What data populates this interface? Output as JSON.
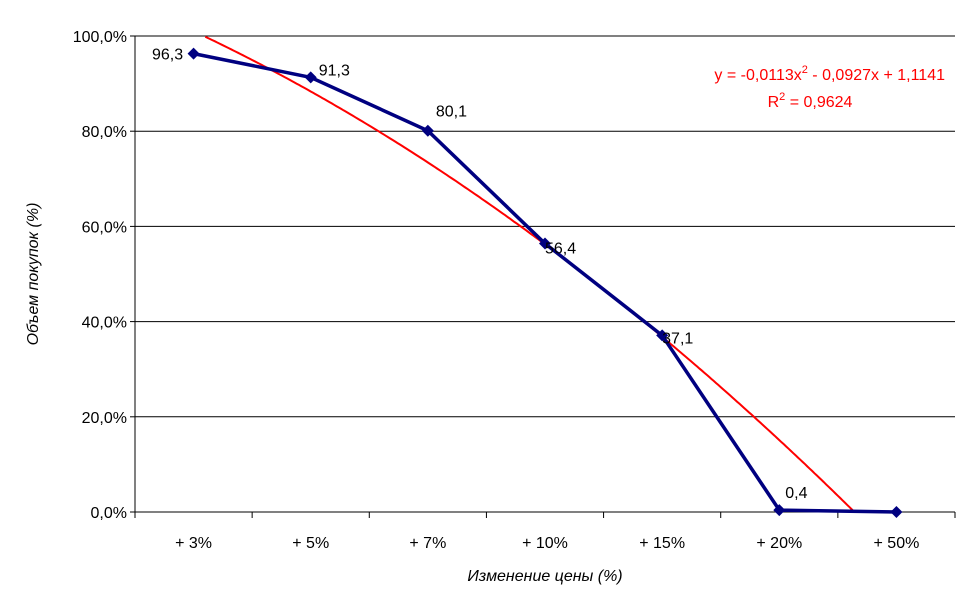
{
  "chart_data": {
    "type": "line",
    "title": "",
    "xlabel": "Изменение цены (%)",
    "ylabel": "Объем покупок (%)",
    "categories": [
      "+ 3%",
      "+ 5%",
      "+ 7%",
      "+ 10%",
      "+ 15%",
      "+ 20%",
      "+ 50%"
    ],
    "series": [
      {
        "name": "Объем покупок",
        "values": [
          96.3,
          91.3,
          80.1,
          56.4,
          37.1,
          0.4,
          0.0
        ],
        "color": "#000080",
        "data_labels": [
          "96,3",
          "91,3",
          "80,1",
          "56,4",
          "37,1",
          "0,4",
          null
        ]
      }
    ],
    "trendline": {
      "type": "polynomial",
      "order": 2,
      "coefficients": [
        -0.0113,
        -0.0927,
        1.1141
      ],
      "equation": "y = -0,0113x",
      "equation_sup": "2",
      "equation_rest": " - 0,0927x + 1,1141",
      "r2_label": "R",
      "r2_sup": "2",
      "r2_rest": " = 0,9624",
      "color": "#ff0000"
    },
    "ylim": [
      0,
      100
    ],
    "yticks": [
      "0,0%",
      "20,0%",
      "40,0%",
      "60,0%",
      "80,0%",
      "100,0%"
    ],
    "grid": true,
    "legend": "none"
  }
}
